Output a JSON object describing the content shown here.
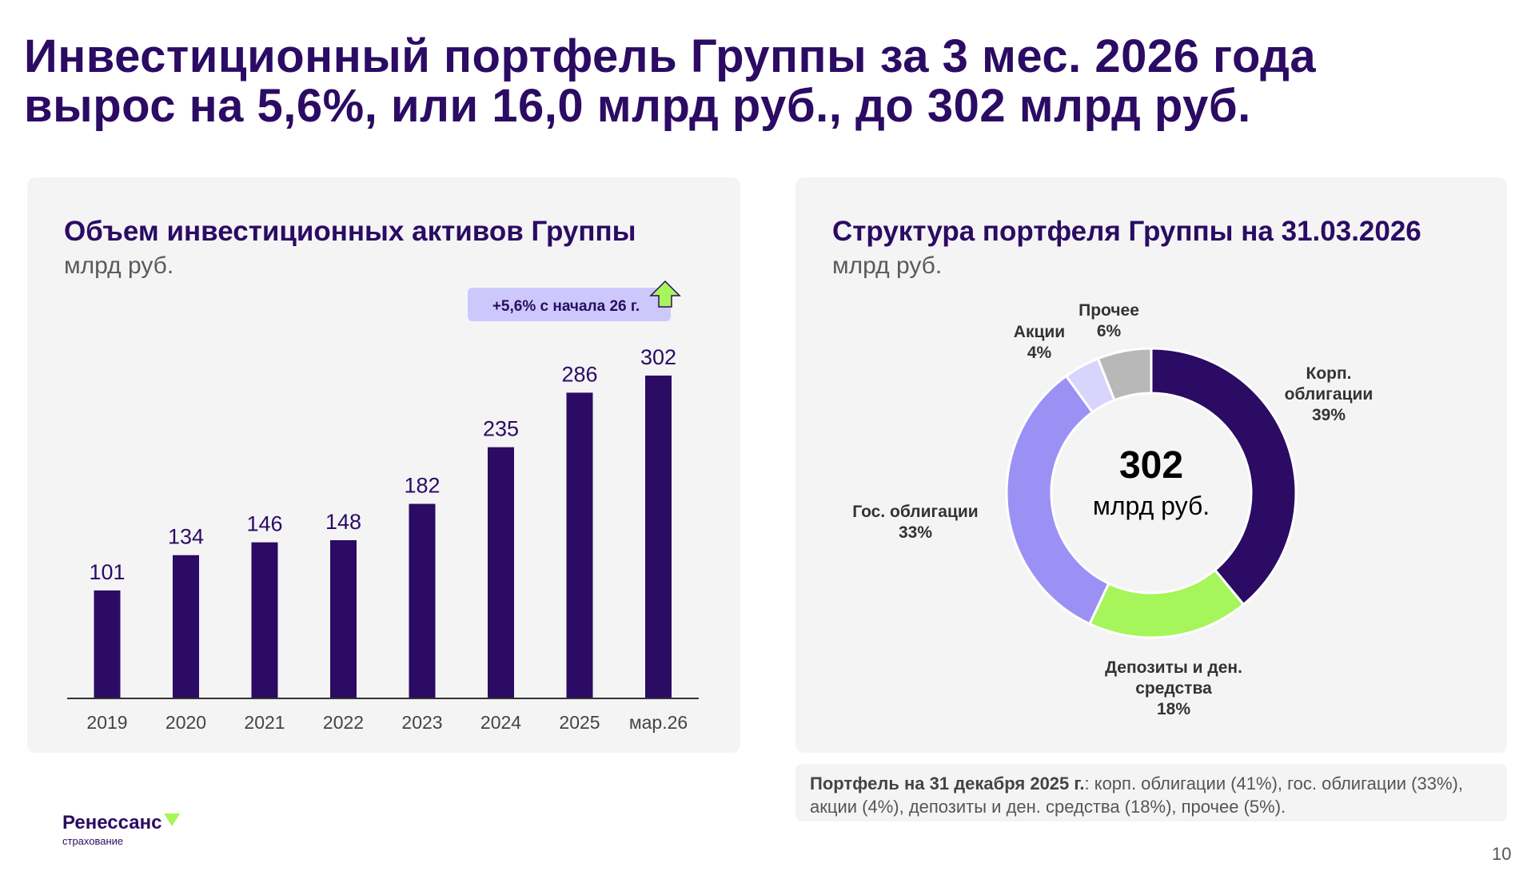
{
  "title": {
    "line1": "Инвестиционный портфель Группы за 3 мес. 2026 года",
    "line2": "вырос на 5,6%, или 16,0 млрд руб., до 302 млрд руб."
  },
  "left_card": {
    "title": "Объем инвестиционных активов Группы",
    "subtitle": "млрд руб.",
    "badge": "+5,6% с начала 26 г."
  },
  "right_card": {
    "title": "Структура портфеля Группы на 31.03.2026",
    "subtitle": "млрд руб.",
    "center_value": "302",
    "center_unit": "млрд руб."
  },
  "note": {
    "bold": "Портфель на 31 декабря 2025 г.",
    "text": ": корп. облигации (41%), гос. облигации (33%), акции (4%), депозиты и ден. средства (18%), прочее (5%)."
  },
  "logo": {
    "name": "Ренессанс",
    "sub": "страхование"
  },
  "page_number": "10",
  "colors": {
    "dark_purple": "#2b0b63",
    "lavender": "#9b91f5",
    "light_lavender": "#d8d4fb",
    "green": "#a6f55a",
    "gray": "#b8b8b8",
    "badge_bg": "#cdc8fb"
  },
  "chart_data": [
    {
      "type": "bar",
      "categories": [
        "2019",
        "2020",
        "2021",
        "2022",
        "2023",
        "2024",
        "2025",
        "мар.26"
      ],
      "values": [
        101,
        134,
        146,
        148,
        182,
        235,
        286,
        302
      ],
      "title": "Объем инвестиционных активов Группы",
      "ylabel": "млрд руб.",
      "ylim": [
        0,
        302
      ],
      "color": "#2b0b63",
      "grid": false
    },
    {
      "type": "pie",
      "title": "Структура портфеля Группы на 31.03.2026",
      "total": 302,
      "slices": [
        {
          "label": "Корп. облигации",
          "label_lines": [
            "Корп.",
            "облигации"
          ],
          "value": 39,
          "value_label": "39%",
          "color": "#2b0b63"
        },
        {
          "label": "Депозиты и ден. средства",
          "label_lines": [
            "Депозиты и ден.",
            "средства"
          ],
          "value": 18,
          "value_label": "18%",
          "color": "#a6f55a"
        },
        {
          "label": "Гос. облигации",
          "label_lines": [
            "Гос. облигации"
          ],
          "value": 33,
          "value_label": "33%",
          "color": "#9b91f5"
        },
        {
          "label": "Акции",
          "label_lines": [
            "Акции"
          ],
          "value": 4,
          "value_label": "4%",
          "color": "#d8d4fb"
        },
        {
          "label": "Прочее",
          "label_lines": [
            "Прочее"
          ],
          "value": 6,
          "value_label": "6%",
          "color": "#b8b8b8"
        }
      ]
    }
  ]
}
